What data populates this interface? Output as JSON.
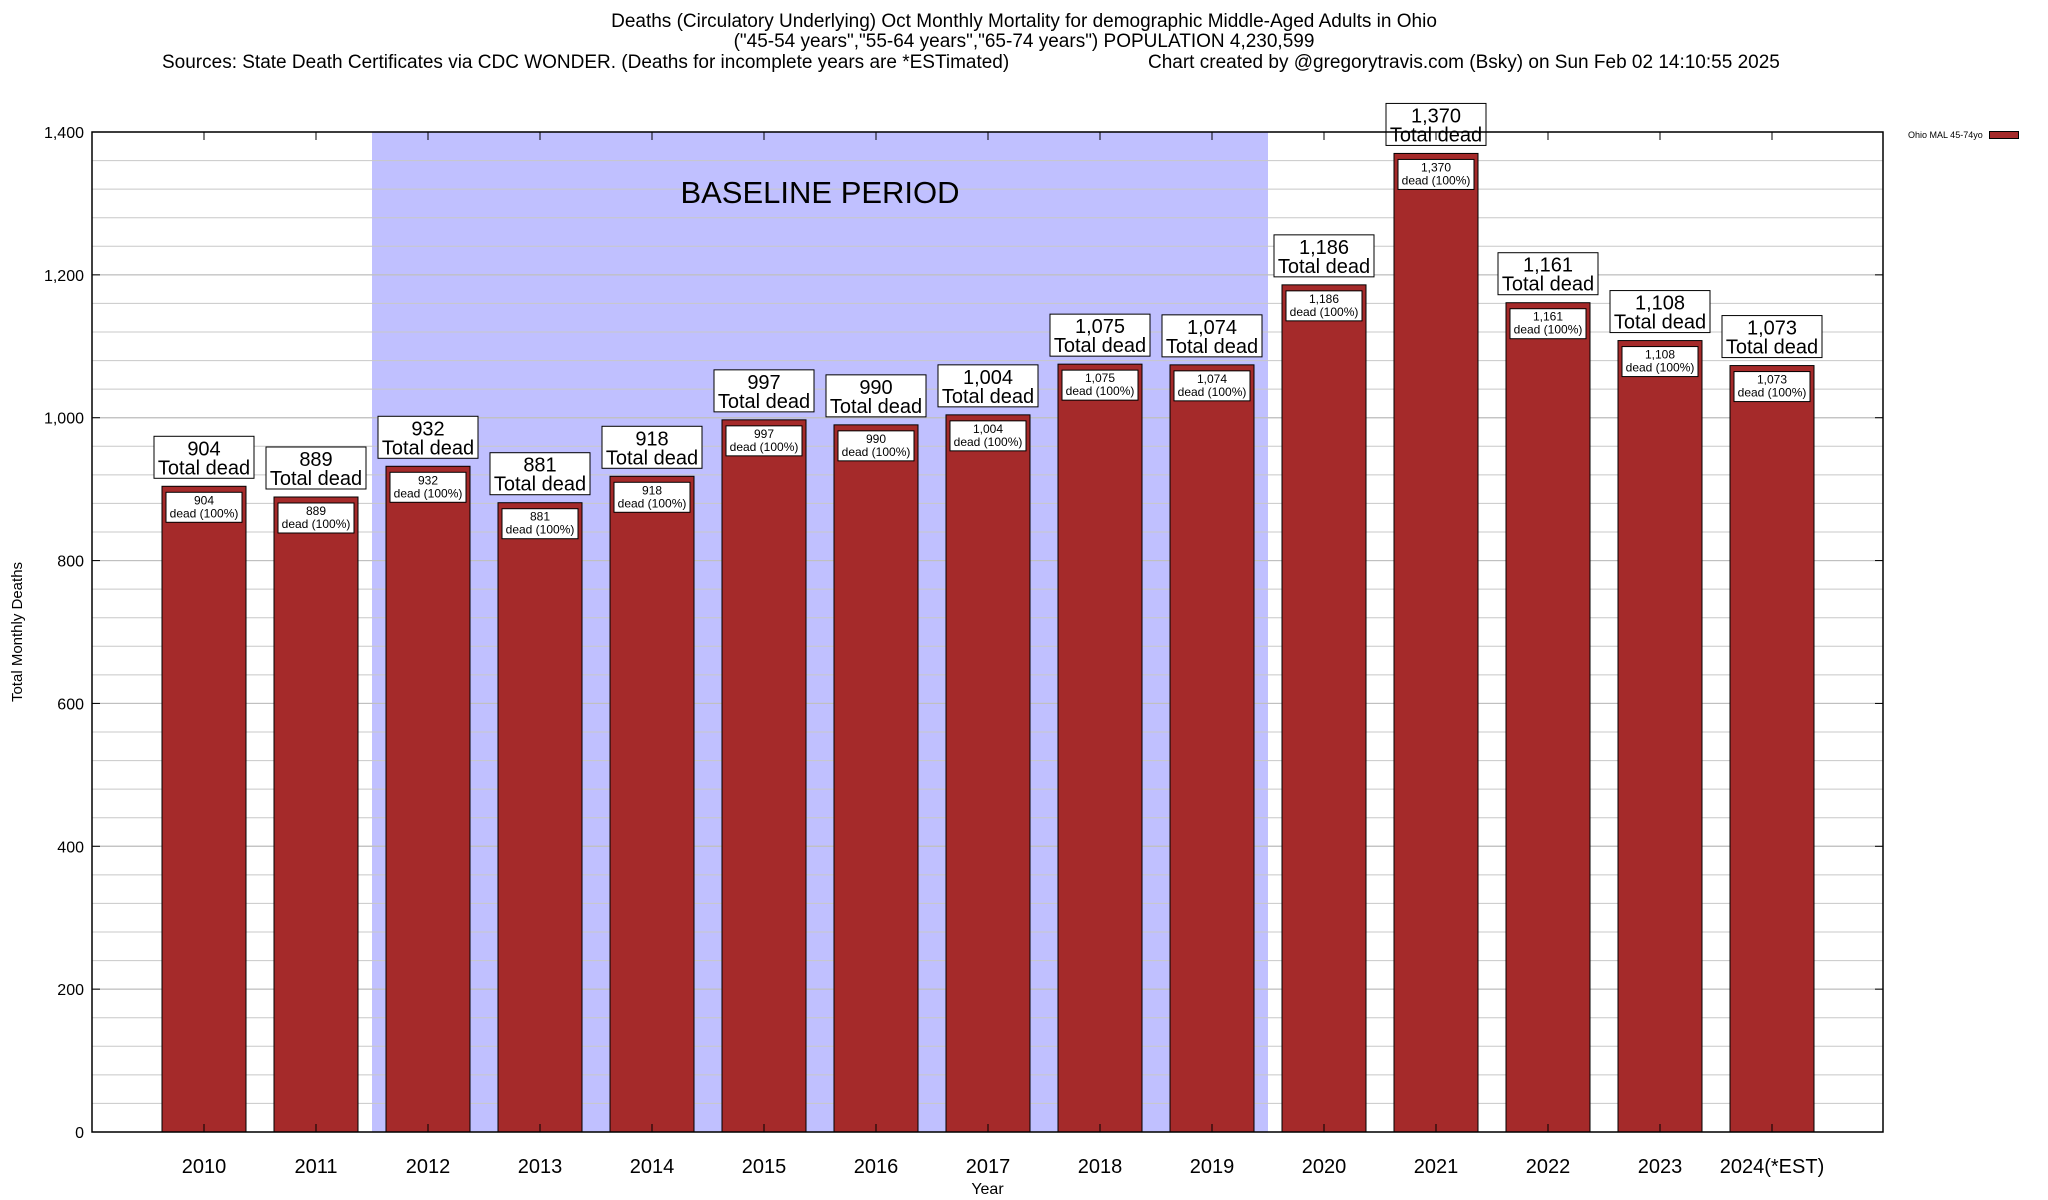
{
  "chart_data": {
    "type": "bar",
    "title": "Deaths (Circulatory Underlying) Oct Monthly Mortality for demographic Middle-Aged Adults in Ohio",
    "subtitle": "(\"45-54 years\",\"55-64 years\",\"65-74 years\") POPULATION 4,230,599",
    "sources": "Sources: State Death Certificates via CDC WONDER. (Deaths for incomplete years are *ESTimated)",
    "credit": "Chart created by @gregorytravis.com (Bsky) on Sun Feb 02 14:10:55 2025",
    "xlabel": "Year",
    "ylabel": "Total Monthly Deaths",
    "ylim": [
      0,
      1400
    ],
    "y_major_ticks": [
      0,
      200,
      400,
      600,
      800,
      1000,
      1200,
      1400
    ],
    "y_tick_labels": [
      "0",
      "200",
      "400",
      "600",
      "800",
      "1,000",
      "1,200",
      "1,400"
    ],
    "y_minor_step": 40,
    "grid": true,
    "categories": [
      "2010",
      "2011",
      "2012",
      "2013",
      "2014",
      "2015",
      "2016",
      "2017",
      "2018",
      "2019",
      "2020",
      "2021",
      "2022",
      "2023",
      "2024(*EST)"
    ],
    "series": [
      {
        "name": "Ohio MAL 45-74yo",
        "color": "#a52a2a",
        "values": [
          904,
          889,
          932,
          881,
          918,
          997,
          990,
          1004,
          1075,
          1074,
          1186,
          1370,
          1161,
          1108,
          1073
        ]
      }
    ],
    "value_labels": [
      "904",
      "889",
      "932",
      "881",
      "918",
      "997",
      "990",
      "1,004",
      "1,075",
      "1,074",
      "1,186",
      "1,370",
      "1,161",
      "1,108",
      "1,073"
    ],
    "total_label_suffix": "Total dead",
    "inner_label_suffix": "dead (100%)",
    "annotation": {
      "text": "BASELINE PERIOD",
      "from_category": "2012",
      "to_category": "2019",
      "color": "#c0c0ff"
    },
    "legend": {
      "placement": "top-right",
      "entries": [
        "Ohio MAL 45-74yo"
      ]
    }
  }
}
